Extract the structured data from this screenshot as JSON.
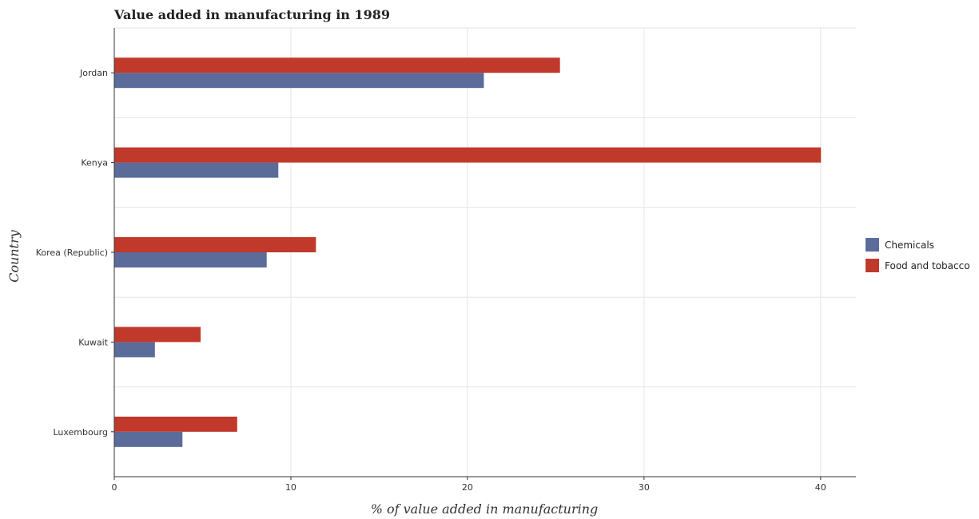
{
  "chart_data": {
    "type": "bar",
    "orientation": "horizontal",
    "title": "Value added in manufacturing in 1989",
    "xlabel": "% of value added in manufacturing",
    "ylabel": "Country",
    "categories": [
      "Jordan",
      "Kenya",
      "Korea (Republic)",
      "Kuwait",
      "Luxembourg"
    ],
    "series": [
      {
        "name": "Chemicals",
        "color": "#5b6b9a",
        "values": [
          20.93,
          9.29,
          8.63,
          2.3,
          3.86
        ]
      },
      {
        "name": "Food and tobacco",
        "color": "#c0392b",
        "values": [
          25.24,
          40.02,
          11.42,
          4.89,
          6.96
        ]
      }
    ],
    "xticks": [
      0,
      10,
      20,
      30,
      40
    ],
    "xlim": [
      0,
      42
    ],
    "grid": true,
    "legend_position": "right"
  }
}
